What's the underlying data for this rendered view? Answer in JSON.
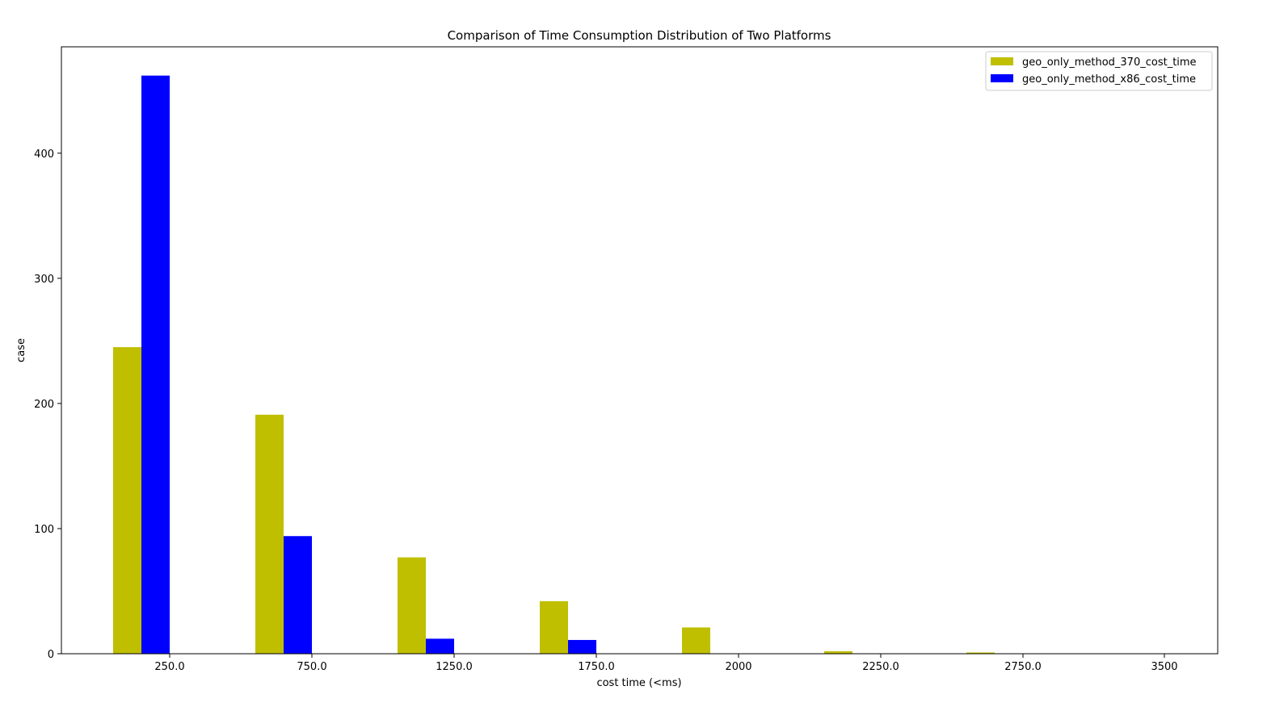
{
  "chart_data": {
    "type": "bar",
    "title": "Comparison of Time Consumption Distribution of Two Platforms",
    "xlabel": "cost time (<ms)",
    "ylabel": "case",
    "categories": [
      "250.0",
      "750.0",
      "1250.0",
      "1750.0",
      "2000",
      "2250.0",
      "2750.0",
      "3500"
    ],
    "series": [
      {
        "name": "geo_only_method_370_cost_time",
        "color": "#bfbf00",
        "values": [
          245,
          191,
          77,
          42,
          21,
          2,
          1,
          0
        ]
      },
      {
        "name": "geo_only_method_x86_cost_time",
        "color": "#0000ff",
        "values": [
          462,
          94,
          12,
          11,
          0,
          0,
          0,
          0
        ]
      }
    ],
    "ylim": [
      0,
      485
    ],
    "yticks": [
      0,
      100,
      200,
      300,
      400
    ],
    "grid": false,
    "legend_position": "top-right"
  }
}
